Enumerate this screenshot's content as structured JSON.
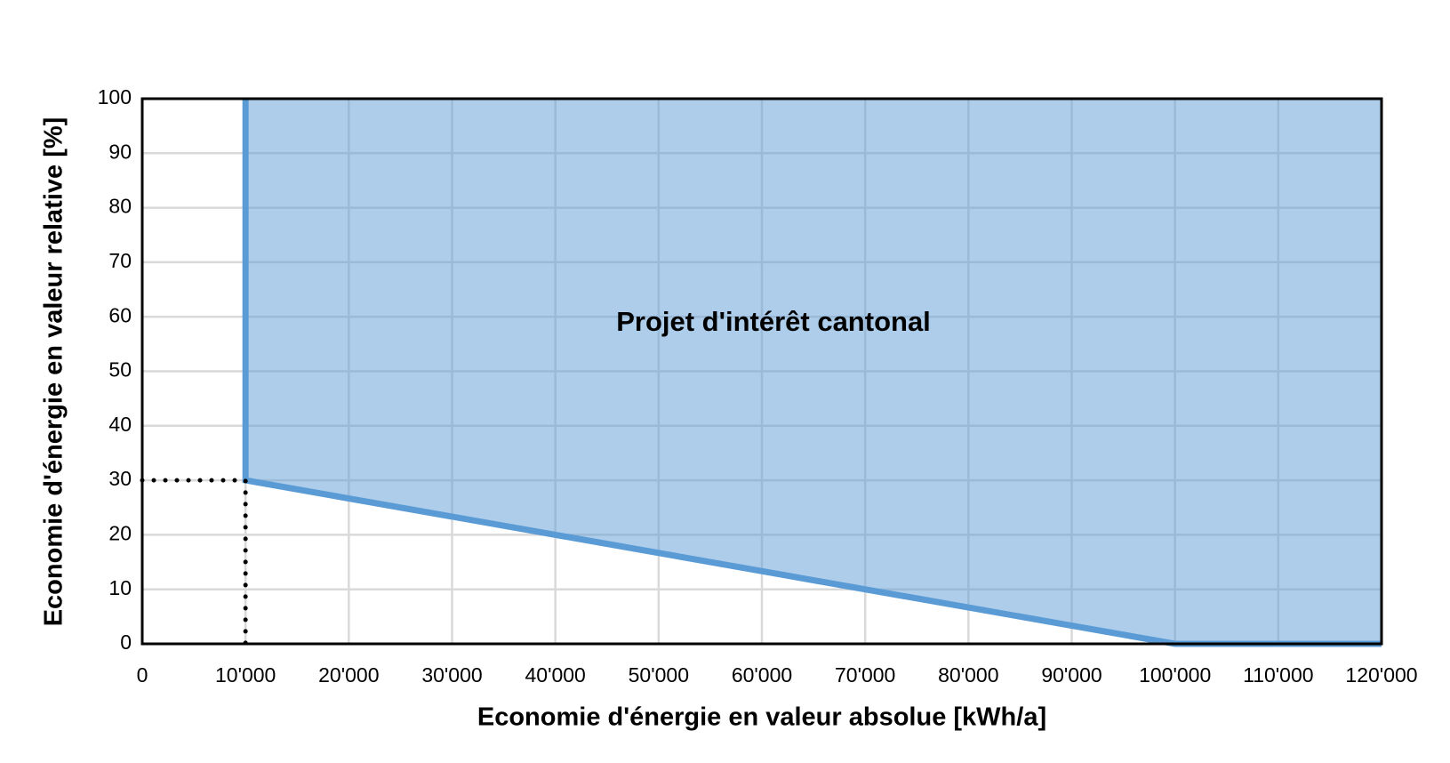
{
  "chart_data": {
    "type": "area",
    "xlabel": "Economie d'énergie en valeur absolue [kWh/a]",
    "ylabel": "Economie d'énergie en valeur relative [%]",
    "annotation": "Projet d'intérêt cantonal",
    "x": [
      10000,
      10000,
      100000,
      120000
    ],
    "values": [
      100,
      30,
      0,
      0
    ],
    "color": "#5b9bd5",
    "fill_color": "#5b9bd5",
    "fill_to": "top",
    "reference": {
      "x": [
        0,
        10000,
        10000
      ],
      "values": [
        30,
        30,
        0
      ],
      "color": "#000000",
      "style": "dotted"
    },
    "xlim": [
      0,
      120000
    ],
    "ylim": [
      0,
      100
    ],
    "xticks": [
      0,
      {
        "value": 10000,
        "label": "10'000"
      },
      {
        "value": 20000,
        "label": "20'000"
      },
      {
        "value": 30000,
        "label": "30'000"
      },
      {
        "value": 40000,
        "label": "40'000"
      },
      {
        "value": 50000,
        "label": "50'000"
      },
      {
        "value": 60000,
        "label": "60'000"
      },
      {
        "value": 70000,
        "label": "70'000"
      },
      {
        "value": 80000,
        "label": "80'000"
      },
      {
        "value": 90000,
        "label": "90'000"
      },
      {
        "value": 100000,
        "label": "100'000"
      },
      {
        "value": 110000,
        "label": "110'000"
      },
      {
        "value": 120000,
        "label": "120'000"
      }
    ],
    "yticks": [
      0,
      10,
      20,
      30,
      40,
      50,
      60,
      70,
      80,
      90,
      100
    ],
    "grid": true
  }
}
